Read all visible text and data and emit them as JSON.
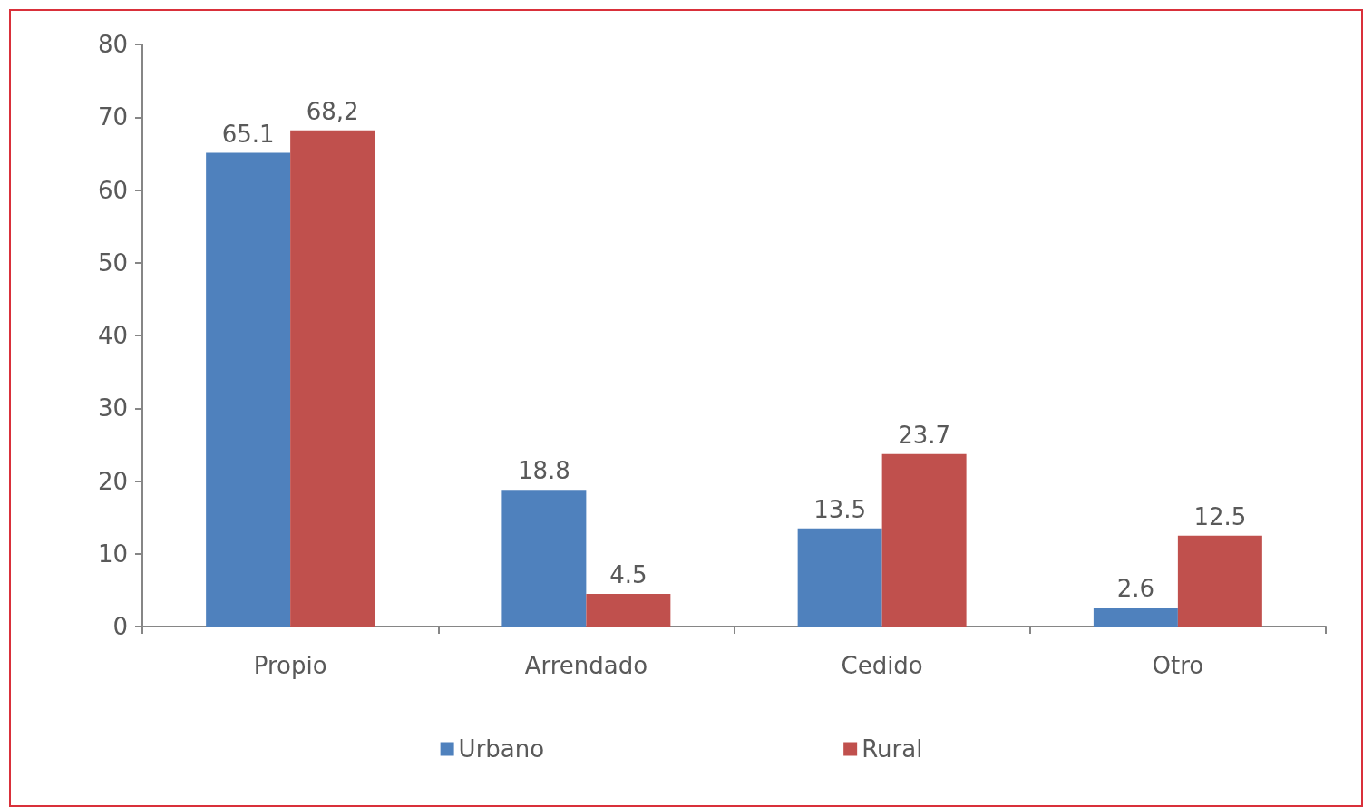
{
  "chart_data": {
    "type": "bar",
    "categories": [
      "Propio",
      "Arrendado",
      "Cedido",
      "Otro"
    ],
    "series": [
      {
        "name": "Urbano",
        "color": "#4f81bd",
        "values": [
          65.1,
          18.8,
          13.5,
          2.6
        ],
        "value_labels": [
          "65.1",
          "18.8",
          "13.5",
          "2.6"
        ]
      },
      {
        "name": "Rural",
        "color": "#c0504d",
        "values": [
          68.2,
          4.5,
          23.7,
          12.5
        ],
        "value_labels": [
          "68,2",
          "4.5",
          "23.7",
          "12.5"
        ]
      }
    ],
    "ylim": [
      0,
      80
    ],
    "yticks": [
      0,
      10,
      20,
      30,
      40,
      50,
      60,
      70,
      80
    ],
    "grid": false,
    "legend": "bottom"
  }
}
